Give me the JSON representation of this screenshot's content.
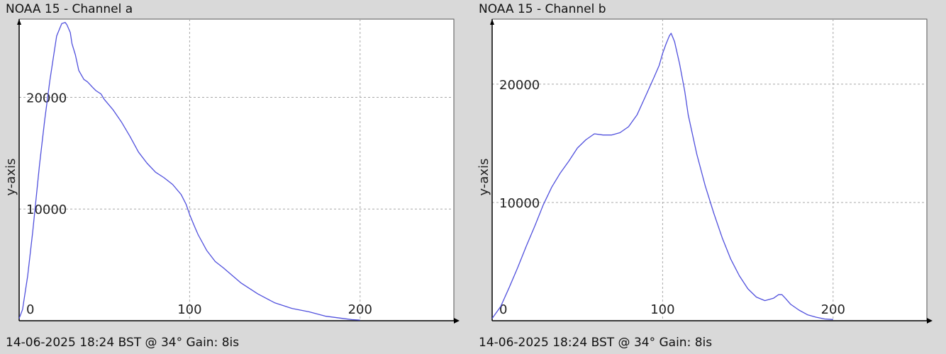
{
  "colors": {
    "line": "#5050dd",
    "grid": "#a8a8a8",
    "axis": "#000000",
    "plot_bg": "#ffffff",
    "window_bg": "#d9d9d9"
  },
  "chart_data": [
    {
      "type": "line",
      "title": "NOAA 15 - Channel a",
      "footer": "14-06-2025 18:24 BST @ 34° Gain: 8is",
      "ylabel": "y-axis",
      "xlim": [
        0,
        255
      ],
      "ylim": [
        0,
        27000
      ],
      "xticks": [
        0,
        100,
        200
      ],
      "yticks": [
        10000,
        20000
      ],
      "grid": true,
      "series": [
        {
          "x": [
            0,
            2,
            5,
            8,
            10,
            12,
            15,
            18,
            20,
            22,
            25,
            27,
            28,
            30,
            31,
            33,
            35,
            38,
            40,
            43,
            45,
            48,
            50,
            55,
            60,
            65,
            70,
            75,
            80,
            85,
            90,
            95,
            98,
            100,
            103,
            105,
            110,
            115,
            120,
            130,
            140,
            150,
            160,
            170,
            180,
            190,
            195,
            200
          ],
          "y": [
            200,
            1000,
            4000,
            8000,
            11000,
            14000,
            18000,
            21500,
            23500,
            25500,
            26600,
            26700,
            26500,
            25800,
            24800,
            23800,
            22400,
            21600,
            21400,
            20900,
            20600,
            20300,
            19800,
            18900,
            17800,
            16500,
            15100,
            14100,
            13300,
            12800,
            12200,
            11300,
            10400,
            9500,
            8400,
            7700,
            6300,
            5300,
            4700,
            3400,
            2400,
            1600,
            1100,
            800,
            400,
            200,
            100,
            60
          ]
        }
      ]
    },
    {
      "type": "line",
      "title": "NOAA 15 - Channel b",
      "footer": "14-06-2025 18:24 BST @ 34° Gain: 8is",
      "ylabel": "y-axis",
      "xlim": [
        0,
        255
      ],
      "ylim": [
        0,
        25500
      ],
      "xticks": [
        0,
        100,
        200
      ],
      "yticks": [
        10000,
        20000
      ],
      "grid": true,
      "series": [
        {
          "x": [
            0,
            5,
            10,
            15,
            20,
            25,
            30,
            35,
            40,
            45,
            50,
            55,
            60,
            65,
            70,
            75,
            80,
            85,
            90,
            95,
            98,
            100,
            102,
            104,
            105,
            107,
            110,
            113,
            115,
            120,
            125,
            130,
            135,
            140,
            145,
            150,
            155,
            160,
            165,
            168,
            170,
            172,
            175,
            180,
            185,
            190,
            195,
            200
          ],
          "y": [
            200,
            1200,
            2800,
            4500,
            6300,
            8000,
            9800,
            11300,
            12500,
            13500,
            14600,
            15300,
            15800,
            15700,
            15700,
            15900,
            16400,
            17400,
            19000,
            20600,
            21600,
            22600,
            23400,
            24100,
            24300,
            23600,
            21700,
            19400,
            17400,
            14100,
            11400,
            9100,
            7000,
            5200,
            3800,
            2700,
            2000,
            1700,
            1900,
            2200,
            2200,
            1900,
            1400,
            900,
            500,
            300,
            150,
            100
          ]
        }
      ]
    }
  ]
}
